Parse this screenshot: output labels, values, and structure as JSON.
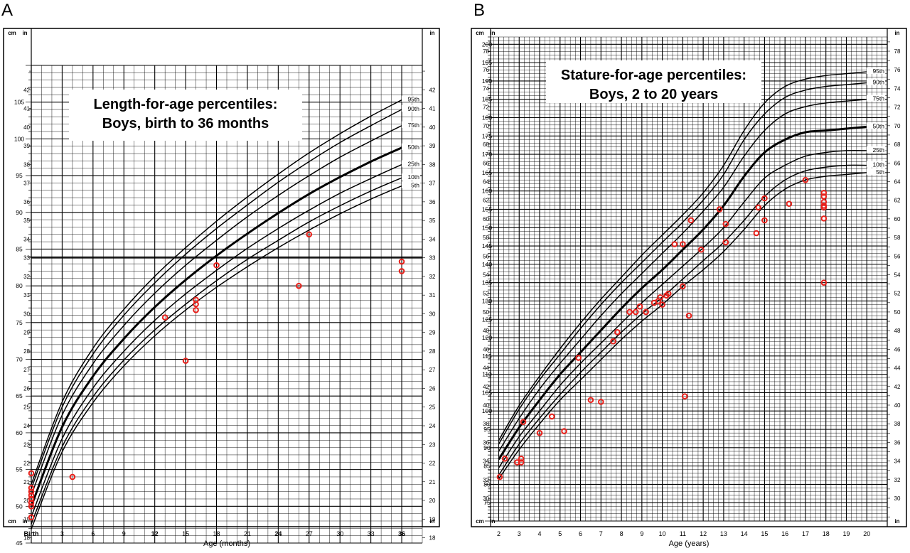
{
  "panels": [
    {
      "letter": "A",
      "title_lines": [
        "Length-for-age percentiles:",
        "Boys, birth to 36 months"
      ],
      "xlabel": "Age (months)",
      "left_unit": "cm",
      "right_unit": "in",
      "x_tick_labels": [
        "Birth",
        "3",
        "6",
        "9",
        "12",
        "15",
        "18",
        "21",
        "24",
        "27",
        "30",
        "33",
        "36"
      ]
    },
    {
      "letter": "B",
      "title_lines": [
        "Stature-for-age percentiles:",
        "Boys, 2 to 20 years"
      ],
      "xlabel": "Age (years)",
      "left_unit": "cm",
      "right_unit": "in",
      "x_tick_labels": [
        "2",
        "3",
        "4",
        "5",
        "6",
        "7",
        "8",
        "9",
        "10",
        "11",
        "12",
        "13",
        "14",
        "15",
        "16",
        "17",
        "18",
        "19",
        "20"
      ]
    }
  ],
  "chart_data": [
    {
      "type": "line",
      "title": "Length-for-age percentiles: Boys, birth to 36 months",
      "xlabel": "Age (months)",
      "ylabel": "cm",
      "y2label": "in",
      "xlim": [
        0,
        38
      ],
      "ylim": [
        45,
        110
      ],
      "y_ticks_cm": [
        45,
        50,
        55,
        60,
        65,
        70,
        75,
        80,
        85,
        90,
        95,
        100,
        105
      ],
      "y_ticks_in": [
        17,
        18,
        19,
        20,
        21,
        22,
        23,
        24,
        25,
        26,
        27,
        28,
        29,
        30,
        31,
        32,
        33,
        34,
        35,
        36,
        37,
        38,
        39,
        40,
        41,
        42
      ],
      "x": [
        0,
        3,
        6,
        9,
        12,
        15,
        18,
        21,
        24,
        27,
        30,
        33,
        36
      ],
      "series": [
        {
          "name": "95th",
          "values": [
            53.0,
            64.2,
            71.5,
            76.8,
            81.3,
            85.2,
            88.8,
            92.1,
            95.2,
            98.1,
            100.7,
            103.1,
            105.3
          ]
        },
        {
          "name": "90th",
          "values": [
            52.4,
            63.5,
            70.7,
            76.0,
            80.4,
            84.3,
            87.8,
            91.0,
            94.1,
            96.9,
            99.5,
            101.8,
            104.0
          ]
        },
        {
          "name": "75th",
          "values": [
            51.5,
            62.4,
            69.4,
            74.6,
            79.0,
            82.8,
            86.2,
            89.4,
            92.3,
            95.0,
            97.5,
            99.7,
            101.8
          ]
        },
        {
          "name": "50th",
          "values": [
            50.0,
            60.8,
            67.7,
            72.8,
            77.1,
            80.8,
            84.1,
            87.1,
            89.9,
            92.5,
            94.8,
            96.9,
            98.8
          ]
        },
        {
          "name": "25th",
          "values": [
            48.6,
            59.2,
            66.1,
            71.1,
            75.3,
            78.9,
            82.1,
            85.1,
            87.8,
            90.3,
            92.6,
            94.6,
            96.5
          ]
        },
        {
          "name": "10th",
          "values": [
            47.6,
            58.1,
            64.9,
            69.9,
            74.0,
            77.5,
            80.7,
            83.6,
            86.2,
            88.7,
            90.9,
            92.9,
            94.7
          ]
        },
        {
          "name": "5th",
          "values": [
            46.9,
            57.4,
            64.1,
            69.1,
            73.2,
            76.7,
            79.8,
            82.6,
            85.2,
            87.6,
            89.8,
            91.8,
            93.6
          ]
        }
      ],
      "highlight_line_in": 33,
      "points": [
        [
          0,
          54.5
        ],
        [
          0,
          52.5
        ],
        [
          0,
          52.0
        ],
        [
          0,
          51.5
        ],
        [
          0,
          51.0
        ],
        [
          0,
          50.5
        ],
        [
          0,
          50.0
        ],
        [
          0,
          48.5
        ],
        [
          4,
          54.0
        ],
        [
          13,
          75.7
        ],
        [
          15,
          69.8
        ],
        [
          16,
          78.1
        ],
        [
          16,
          77.5
        ],
        [
          16,
          76.7
        ],
        [
          18,
          82.8
        ],
        [
          26,
          80.0
        ],
        [
          27,
          87.0
        ],
        [
          36,
          83.3
        ],
        [
          36,
          82.0
        ]
      ],
      "point_color": "#e8201a"
    },
    {
      "type": "line",
      "title": "Stature-for-age percentiles: Boys, 2 to 20 years",
      "xlabel": "Age (years)",
      "ylabel": "cm",
      "y2label": "in",
      "xlim": [
        1.6,
        21
      ],
      "ylim": [
        70,
        202
      ],
      "y_ticks_cm": [
        75,
        80,
        85,
        90,
        95,
        100,
        105,
        110,
        115,
        120,
        125,
        130,
        135,
        140,
        145,
        150,
        155,
        160,
        165,
        170,
        175,
        180,
        185,
        190,
        195,
        200
      ],
      "y_ticks_in": [
        30,
        32,
        34,
        36,
        38,
        40,
        42,
        44,
        46,
        48,
        50,
        52,
        54,
        56,
        58,
        60,
        62,
        64,
        66,
        68,
        70,
        72,
        74,
        76,
        78
      ],
      "x": [
        2,
        3,
        4,
        5,
        6,
        7,
        8,
        9,
        10,
        11,
        12,
        13,
        14,
        15,
        16,
        17,
        18,
        19,
        20
      ],
      "series": [
        {
          "name": "95th",
          "values": [
            92.0,
            101.5,
            109.5,
            117.0,
            124.0,
            130.5,
            136.5,
            142.5,
            148.0,
            153.5,
            159.5,
            167.0,
            176.5,
            184.0,
            188.5,
            190.5,
            191.5,
            192.0,
            192.5
          ]
        },
        {
          "name": "90th",
          "values": [
            91.0,
            100.5,
            108.5,
            115.5,
            122.5,
            129.0,
            135.0,
            140.5,
            146.0,
            151.5,
            157.5,
            164.5,
            174.0,
            181.0,
            185.5,
            187.5,
            188.5,
            189.0,
            189.5
          ]
        },
        {
          "name": "75th",
          "values": [
            89.0,
            98.0,
            106.0,
            113.0,
            119.5,
            126.0,
            132.0,
            137.5,
            143.0,
            148.5,
            154.5,
            161.0,
            169.5,
            176.5,
            181.0,
            183.0,
            184.0,
            184.5,
            185.0
          ]
        },
        {
          "name": "50th",
          "values": [
            86.8,
            95.5,
            103.0,
            110.0,
            116.0,
            122.0,
            128.0,
            133.5,
            138.5,
            144.0,
            149.5,
            156.0,
            164.0,
            170.5,
            174.0,
            176.0,
            176.5,
            177.0,
            177.5
          ]
        },
        {
          "name": "25th",
          "values": [
            84.5,
            93.0,
            100.0,
            107.0,
            113.0,
            118.5,
            124.0,
            129.5,
            134.5,
            139.5,
            144.5,
            150.0,
            157.0,
            163.5,
            167.0,
            169.5,
            170.5,
            171.0,
            171.0
          ]
        },
        {
          "name": "10th",
          "values": [
            82.5,
            91.0,
            98.0,
            104.5,
            110.5,
            116.0,
            121.5,
            126.5,
            131.0,
            136.0,
            141.0,
            146.0,
            152.0,
            158.5,
            163.0,
            165.5,
            166.5,
            167.0,
            167.0
          ]
        },
        {
          "name": "5th",
          "values": [
            81.5,
            89.5,
            96.5,
            103.0,
            108.5,
            114.0,
            119.5,
            124.5,
            129.0,
            134.0,
            138.5,
            143.5,
            149.5,
            156.0,
            160.5,
            163.0,
            164.0,
            164.5,
            165.0
          ]
        }
      ],
      "points": [
        [
          2.05,
          82.0
        ],
        [
          2.3,
          87.0
        ],
        [
          2.9,
          86.0
        ],
        [
          3.1,
          86.0
        ],
        [
          3.1,
          87.0
        ],
        [
          3.2,
          97.0
        ],
        [
          4.0,
          94.0
        ],
        [
          4.6,
          98.5
        ],
        [
          5.2,
          94.5
        ],
        [
          5.9,
          114.5
        ],
        [
          6.5,
          103.0
        ],
        [
          7.0,
          102.5
        ],
        [
          7.6,
          119.0
        ],
        [
          7.8,
          121.5
        ],
        [
          8.4,
          127.0
        ],
        [
          8.7,
          127.0
        ],
        [
          8.9,
          128.5
        ],
        [
          9.2,
          127.0
        ],
        [
          9.6,
          129.5
        ],
        [
          9.8,
          130.0
        ],
        [
          9.9,
          131.0
        ],
        [
          10.0,
          129.0
        ],
        [
          10.2,
          131.5
        ],
        [
          10.3,
          132.0
        ],
        [
          10.6,
          145.5
        ],
        [
          11.0,
          145.5
        ],
        [
          11.0,
          134.0
        ],
        [
          11.1,
          104.0
        ],
        [
          11.3,
          126.0
        ],
        [
          11.4,
          152.0
        ],
        [
          11.9,
          144.0
        ],
        [
          12.8,
          155.0
        ],
        [
          13.1,
          146.0
        ],
        [
          13.1,
          151.0
        ],
        [
          14.6,
          148.5
        ],
        [
          14.7,
          155.5
        ],
        [
          15.0,
          152.0
        ],
        [
          15.0,
          158.0
        ],
        [
          16.2,
          156.5
        ],
        [
          17.0,
          163.0
        ],
        [
          17.9,
          159.5
        ],
        [
          17.9,
          158.5
        ],
        [
          17.9,
          157.0
        ],
        [
          17.9,
          156.0
        ],
        [
          17.9,
          155.5
        ],
        [
          17.9,
          152.5
        ],
        [
          17.9,
          135.0
        ]
      ],
      "point_color": "#e8201a"
    }
  ]
}
